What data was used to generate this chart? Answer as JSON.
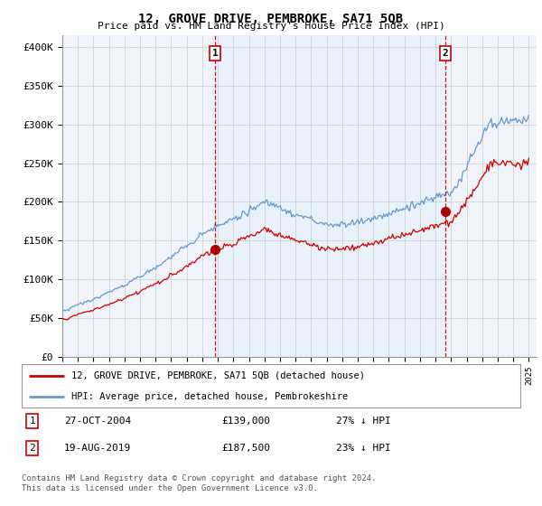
{
  "title": "12, GROVE DRIVE, PEMBROKE, SA71 5QB",
  "subtitle": "Price paid vs. HM Land Registry's House Price Index (HPI)",
  "ylabel_ticks": [
    "£0",
    "£50K",
    "£100K",
    "£150K",
    "£200K",
    "£250K",
    "£300K",
    "£350K",
    "£400K"
  ],
  "ytick_values": [
    0,
    50000,
    100000,
    150000,
    200000,
    250000,
    300000,
    350000,
    400000
  ],
  "ylim": [
    0,
    415000
  ],
  "xlim_start": 1995.0,
  "xlim_end": 2025.5,
  "sale1_date": 2004.82,
  "sale1_price": 139000,
  "sale1_label": "1",
  "sale2_date": 2019.63,
  "sale2_price": 187500,
  "sale2_label": "2",
  "legend_line1": "12, GROVE DRIVE, PEMBROKE, SA71 5QB (detached house)",
  "legend_line2": "HPI: Average price, detached house, Pembrokeshire",
  "table_row1_num": "1",
  "table_row1_date": "27-OCT-2004",
  "table_row1_price": "£139,000",
  "table_row1_hpi": "27% ↓ HPI",
  "table_row2_num": "2",
  "table_row2_date": "19-AUG-2019",
  "table_row2_price": "£187,500",
  "table_row2_hpi": "23% ↓ HPI",
  "footnote": "Contains HM Land Registry data © Crown copyright and database right 2024.\nThis data is licensed under the Open Government Licence v3.0.",
  "line_color_red": "#cc0000",
  "line_color_blue": "#6699cc",
  "shade_color": "#ddeeff",
  "vline_color": "#cc0000",
  "background_color": "#ffffff",
  "grid_color": "#cccccc",
  "plot_bg_color": "#f0f4fa"
}
